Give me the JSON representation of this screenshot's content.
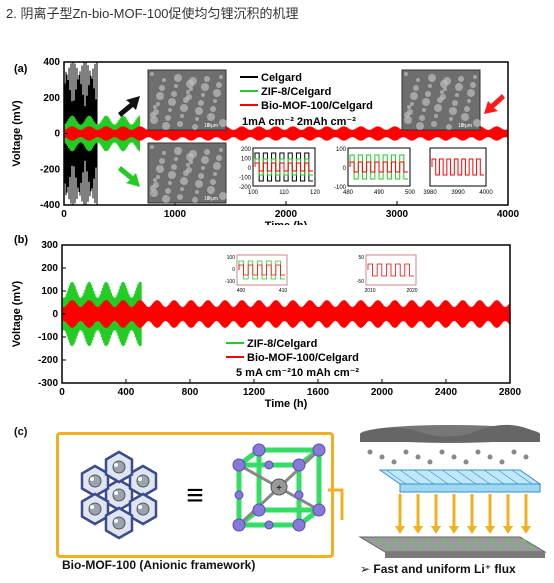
{
  "heading": "2. 阴离子型Zn-bio-MOF-100促使均匀锂沉积的机理",
  "chart_data": [
    {
      "type": "line",
      "panel": "(a)",
      "xlabel": "Time (h)",
      "ylabel": "Voltage (mV)",
      "xlim": [
        0,
        4000
      ],
      "ylim": [
        -400,
        400
      ],
      "xticks": [
        "0",
        "1000",
        "2000",
        "3000",
        "4000"
      ],
      "yticks": [
        "400",
        "200",
        "0",
        "-200",
        "-400"
      ],
      "legend": "top-center",
      "series": [
        {
          "name": "Celgard",
          "color": "#000000",
          "x_end": 300,
          "amplitude_mV": 400
        },
        {
          "name": "ZIF-8/Celgard",
          "color": "#22cc22",
          "x_end": 680,
          "amplitude_mV": 100
        },
        {
          "name": "Bio-MOF-100/Celgard",
          "color": "#ff0000",
          "x_end": 4000,
          "amplitude_mV": 40
        }
      ],
      "condition": "1mA cm⁻² 2mAh cm⁻²",
      "sem_scale": "10 μm",
      "insets": [
        {
          "xticks": [
            "100",
            "110",
            "120"
          ],
          "yticks": [
            "200",
            "100",
            "0",
            "-100",
            "-200"
          ]
        },
        {
          "xticks": [
            "480",
            "490",
            "500"
          ],
          "yticks": [
            "100",
            "0",
            "-100"
          ]
        },
        {
          "xticks": [
            "3980",
            "3990",
            "4000"
          ],
          "yticks": []
        }
      ]
    },
    {
      "type": "line",
      "panel": "(b)",
      "xlabel": "Time (h)",
      "ylabel": "Voltage (mV)",
      "xlim": [
        0,
        2800
      ],
      "ylim": [
        -300,
        300
      ],
      "xticks": [
        "0",
        "400",
        "800",
        "1200",
        "1600",
        "2000",
        "2400",
        "2800"
      ],
      "yticks": [
        "300",
        "200",
        "100",
        "0",
        "-100",
        "-200",
        "-300"
      ],
      "legend": "bottom-center",
      "series": [
        {
          "name": "ZIF-8/Celgard",
          "color": "#22cc22",
          "x_end": 500,
          "amplitude_mV": 140
        },
        {
          "name": "Bio-MOF-100/Celgard",
          "color": "#ff0000",
          "x_end": 2800,
          "amplitude_mV": 60
        }
      ],
      "condition": "5 mA cm⁻²10 mAh cm⁻²",
      "insets": [
        {
          "xticks": [
            "400",
            "410"
          ],
          "yticks": [
            "100",
            "0",
            "-100"
          ]
        },
        {
          "xticks": [
            "2010",
            "2020"
          ],
          "yticks": [
            "50",
            "-50"
          ]
        }
      ]
    }
  ],
  "panel_c": {
    "label": "(c)",
    "equals": "≡",
    "caption_left": "Bio-MOF-100 (Anionic framework)",
    "caption_right": "➢ Fast and uniform Li⁺ flux",
    "colors": {
      "frame": "#f2b01e",
      "arrow": "#f2b01e",
      "cage": "#33dd66",
      "node": "#8878d8"
    }
  }
}
